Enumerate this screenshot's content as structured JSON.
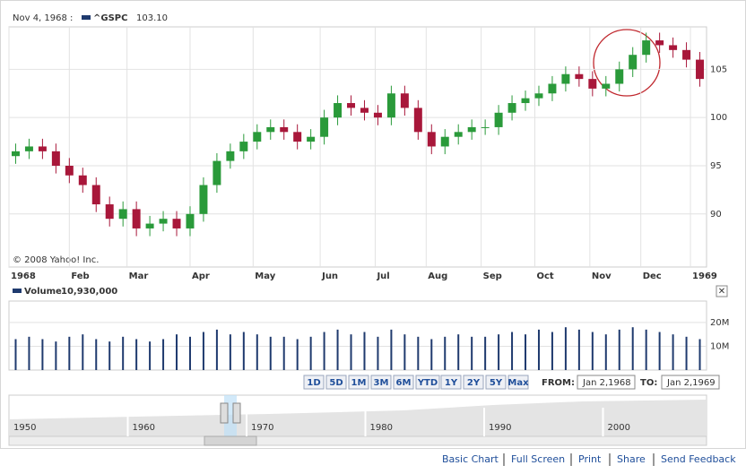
{
  "header": {
    "date": "Nov 4, 1968 :",
    "symbol": "^GSPC",
    "price": "103.10"
  },
  "chart_data": [
    {
      "type": "candlestick",
      "open": [
        96,
        96.5,
        97,
        96.5,
        95,
        94,
        93,
        91,
        89.5,
        90.5,
        88.5,
        89,
        89.5,
        88.5,
        90,
        93,
        95.5,
        96.5,
        97.5,
        98.5,
        99,
        98.5,
        97.5,
        98,
        100,
        101.5,
        101,
        100.5,
        100,
        102.5,
        101,
        98.5,
        97,
        98,
        98.5,
        99,
        99,
        100.5,
        101.5,
        102,
        102.5,
        103.5,
        104.5,
        104,
        103,
        103.5,
        105,
        106.5,
        108,
        107.5,
        107,
        106
      ],
      "high": [
        97.3,
        97.8,
        97.8,
        97.3,
        95.8,
        94.8,
        93.8,
        91.8,
        91.3,
        91.3,
        89.8,
        90.3,
        90.3,
        90.8,
        93.8,
        96.3,
        97.3,
        98.3,
        99.3,
        99.8,
        99.8,
        99.3,
        98.8,
        100.8,
        102.3,
        102.3,
        101.8,
        101.3,
        103.3,
        103.3,
        101.8,
        99.3,
        98.8,
        99.3,
        99.8,
        99.8,
        101.3,
        102.3,
        102.8,
        103.3,
        104.3,
        105.3,
        105.3,
        104.8,
        104.3,
        105.8,
        107.3,
        108.8,
        108.8,
        108.3,
        107.8,
        106.8
      ],
      "low": [
        95.2,
        95.7,
        95.7,
        94.2,
        93.2,
        92.2,
        90.2,
        88.7,
        88.7,
        87.7,
        87.7,
        88.2,
        87.7,
        87.7,
        89.2,
        92.2,
        94.7,
        95.7,
        96.7,
        97.7,
        97.7,
        96.7,
        96.7,
        97.2,
        99.2,
        100.2,
        99.7,
        99.2,
        99.2,
        100.2,
        97.7,
        96.2,
        96.2,
        97.2,
        97.7,
        98.2,
        98.2,
        99.7,
        100.7,
        101.2,
        101.7,
        102.7,
        103.2,
        102.2,
        102.2,
        102.7,
        104.2,
        105.7,
        106.7,
        106.2,
        105.2,
        103.2
      ],
      "close": [
        96.5,
        97,
        96.5,
        95,
        94,
        93,
        91,
        89.5,
        90.5,
        88.5,
        89,
        89.5,
        88.5,
        90,
        93,
        95.5,
        96.5,
        97.5,
        98.5,
        99,
        98.5,
        97.5,
        98,
        100,
        101.5,
        101,
        100.5,
        100,
        102.5,
        101,
        98.5,
        97,
        98,
        98.5,
        99,
        99,
        100.5,
        101.5,
        102,
        102.5,
        103.5,
        104.5,
        104,
        103,
        103.5,
        105,
        106.5,
        108,
        107.5,
        107,
        106,
        104
      ],
      "xlim": [
        0,
        52
      ],
      "xticks": [
        {
          "value": 0,
          "label": "1968"
        },
        {
          "value": 4.5,
          "label": "Feb"
        },
        {
          "value": 8.8,
          "label": "Mar"
        },
        {
          "value": 13.5,
          "label": "Apr"
        },
        {
          "value": 18.2,
          "label": "May"
        },
        {
          "value": 23.2,
          "label": "Jun"
        },
        {
          "value": 27.3,
          "label": "Jul"
        },
        {
          "value": 31.1,
          "label": "Aug"
        },
        {
          "value": 35.2,
          "label": "Sep"
        },
        {
          "value": 39.2,
          "label": "Oct"
        },
        {
          "value": 43.3,
          "label": "Nov"
        },
        {
          "value": 47.1,
          "label": "Dec"
        },
        {
          "value": 50.8,
          "label": "1969"
        }
      ],
      "ylim": [
        84.5,
        109.4
      ],
      "yticks": [
        90,
        95,
        100,
        105
      ],
      "up_color": "#2a9a3a",
      "down_color": "#a8173a",
      "grid": true,
      "copyright": "© 2008 Yahoo! Inc."
    },
    {
      "type": "bar",
      "title": "Volume",
      "value_label": "10,930,000",
      "values": [
        13000000,
        14000000,
        13000000,
        12000000,
        14000000,
        15000000,
        13000000,
        12000000,
        14000000,
        13000000,
        12000000,
        13000000,
        15000000,
        14000000,
        16000000,
        17000000,
        15000000,
        16000000,
        15000000,
        14000000,
        14000000,
        13000000,
        14000000,
        16000000,
        17000000,
        15000000,
        16000000,
        14000000,
        17000000,
        15000000,
        14000000,
        13000000,
        14000000,
        15000000,
        14000000,
        14000000,
        15000000,
        16000000,
        15000000,
        17000000,
        16000000,
        18000000,
        17000000,
        16000000,
        15000000,
        17000000,
        18000000,
        17000000,
        16000000,
        15000000,
        14000000,
        13000000
      ],
      "color": "#1f3a6e",
      "xlim": [
        0,
        52
      ],
      "ylim": [
        0,
        29000000
      ],
      "yticks": [
        {
          "value": 10000000,
          "label": "10M"
        },
        {
          "value": 20000000,
          "label": "20M"
        }
      ],
      "grid": true
    }
  ],
  "ranges": [
    "1D",
    "5D",
    "1M",
    "3M",
    "6M",
    "YTD",
    "1Y",
    "2Y",
    "5Y",
    "Max"
  ],
  "from_label": "FROM:",
  "from": "Jan 2,1968",
  "to_label": "TO:",
  "to": "Jan 2,1969",
  "navigator": {
    "years": [
      "1950",
      "1960",
      "1970",
      "1980",
      "1990",
      "2000"
    ]
  },
  "footer_links": [
    "Basic Chart",
    "Full Screen",
    "Print",
    "Share",
    "Send Feedback"
  ]
}
